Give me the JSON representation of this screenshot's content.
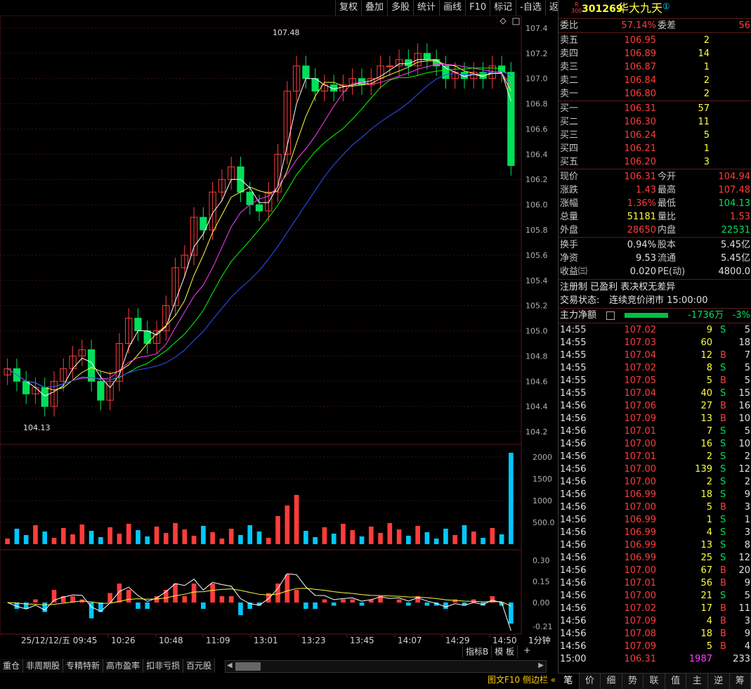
{
  "toolbar": [
    "复权",
    "叠加",
    "多股",
    "统计",
    "画线",
    "F10",
    "标记",
    "-自选",
    "返回"
  ],
  "stock": {
    "badge_top": "R",
    "badge_bottom": "300",
    "code": "301269",
    "name": "华大九天",
    "mark": "①"
  },
  "weibi": {
    "label": "委比",
    "value": "57.14%",
    "diff_label": "委差",
    "diff_value": "56"
  },
  "asks": [
    {
      "label": "卖五",
      "price": "106.95",
      "vol": "2"
    },
    {
      "label": "卖四",
      "price": "106.89",
      "vol": "14"
    },
    {
      "label": "卖三",
      "price": "106.87",
      "vol": "1"
    },
    {
      "label": "卖二",
      "price": "106.84",
      "vol": "2"
    },
    {
      "label": "卖一",
      "price": "106.80",
      "vol": "2"
    }
  ],
  "bids": [
    {
      "label": "买一",
      "price": "106.31",
      "vol": "57"
    },
    {
      "label": "买二",
      "price": "106.30",
      "vol": "11"
    },
    {
      "label": "买三",
      "price": "106.24",
      "vol": "5"
    },
    {
      "label": "买四",
      "price": "106.21",
      "vol": "1"
    },
    {
      "label": "买五",
      "price": "106.20",
      "vol": "3"
    }
  ],
  "quote": [
    {
      "l1": "现价",
      "v1": "106.31",
      "c1": "red",
      "l2": "今开",
      "v2": "104.94",
      "c2": "red"
    },
    {
      "l1": "涨跌",
      "v1": "1.43",
      "c1": "red",
      "l2": "最高",
      "v2": "107.48",
      "c2": "red"
    },
    {
      "l1": "涨幅",
      "v1": "1.36%",
      "c1": "red",
      "l2": "最低",
      "v2": "104.13",
      "c2": "green"
    },
    {
      "l1": "总量",
      "v1": "51181",
      "c1": "yellow",
      "l2": "量比",
      "v2": "1.53",
      "c2": "red"
    },
    {
      "l1": "外盘",
      "v1": "28650",
      "c1": "red",
      "l2": "内盘",
      "v2": "22531",
      "c2": "green"
    }
  ],
  "fund": [
    {
      "l1": "换手",
      "v1": "0.94%",
      "l2": "股本",
      "v2": "5.45亿"
    },
    {
      "l1": "净资",
      "v1": "9.53",
      "l2": "流通",
      "v2": "5.45亿"
    },
    {
      "l1": "收益㈢",
      "v1": "0.020",
      "l2": "PE(动)",
      "v2": "4800.0"
    }
  ],
  "tags_line": "注册制 已盈利 表决权无差异",
  "trade_status_label": "交易状态:",
  "trade_status": "连续竞价闭市 15:00:00",
  "main_force": {
    "label": "主力净额",
    "value": "-1736万",
    "pct": "-3%"
  },
  "trades": [
    [
      "14:55",
      "107.02",
      "9",
      "S",
      "5"
    ],
    [
      "14:55",
      "107.03",
      "60",
      "",
      "18"
    ],
    [
      "14:55",
      "107.04",
      "12",
      "B",
      "7"
    ],
    [
      "14:55",
      "107.02",
      "8",
      "S",
      "5"
    ],
    [
      "14:55",
      "107.05",
      "5",
      "B",
      "5"
    ],
    [
      "14:55",
      "107.04",
      "40",
      "S",
      "15"
    ],
    [
      "14:56",
      "107.06",
      "27",
      "B",
      "16"
    ],
    [
      "14:56",
      "107.09",
      "13",
      "B",
      "10"
    ],
    [
      "14:56",
      "107.01",
      "7",
      "S",
      "5"
    ],
    [
      "14:56",
      "107.00",
      "16",
      "S",
      "10"
    ],
    [
      "14:56",
      "107.01",
      "2",
      "S",
      "2"
    ],
    [
      "14:56",
      "107.00",
      "139",
      "S",
      "12"
    ],
    [
      "14:56",
      "107.00",
      "2",
      "S",
      "2"
    ],
    [
      "14:56",
      "106.99",
      "18",
      "S",
      "9"
    ],
    [
      "14:56",
      "107.00",
      "5",
      "B",
      "3"
    ],
    [
      "14:56",
      "106.99",
      "1",
      "S",
      "1"
    ],
    [
      "14:56",
      "106.99",
      "4",
      "S",
      "3"
    ],
    [
      "14:56",
      "106.99",
      "13",
      "S",
      "8"
    ],
    [
      "14:56",
      "106.99",
      "25",
      "S",
      "12"
    ],
    [
      "14:56",
      "107.00",
      "67",
      "B",
      "20"
    ],
    [
      "14:56",
      "107.01",
      "56",
      "B",
      "9"
    ],
    [
      "14:56",
      "107.00",
      "21",
      "S",
      "5"
    ],
    [
      "14:56",
      "107.02",
      "17",
      "B",
      "11"
    ],
    [
      "14:56",
      "107.09",
      "4",
      "B",
      "3"
    ],
    [
      "14:56",
      "107.08",
      "18",
      "B",
      "9"
    ],
    [
      "14:56",
      "107.09",
      "5",
      "B",
      "4"
    ],
    [
      "15:00",
      "106.31",
      "1987",
      "",
      "233"
    ]
  ],
  "panel_tabs": [
    "笔",
    "价",
    "细",
    "势",
    "联",
    "值",
    "主",
    "逆",
    "筹"
  ],
  "bottom_tabs": [
    "重仓",
    "非周期股",
    "专精特新",
    "高市盈率",
    "扣非亏损",
    "百元股"
  ],
  "bottom_right_text": "图文F10 侧边栏 «",
  "indicator_tabs": [
    "指标B",
    "模 板",
    "+"
  ],
  "period": "1分钟",
  "colors": {
    "up": "#ff3c3c",
    "down": "#00e05a",
    "vol": "#ffff3c",
    "ma5": "#ffffff",
    "ma10": "#ffff3c",
    "ma20": "#ff3cff",
    "ma30": "#00ff00",
    "ma60": "#3050ff"
  },
  "chart_data": {
    "type": "candlestick",
    "price_axis": {
      "ticks": [
        "107.4",
        "107.2",
        "107.0",
        "106.8",
        "106.6",
        "106.4",
        "106.2",
        "106.0",
        "105.8",
        "105.6",
        "105.4",
        "105.2",
        "105.0",
        "104.8",
        "104.6",
        "104.4",
        "104.2"
      ],
      "range": [
        104.1,
        107.5
      ]
    },
    "high_label": "107.48",
    "low_label": "104.13",
    "time_ticks": [
      "25/12/12/五 09:45",
      "10:26",
      "10:48",
      "11:09",
      "13:01",
      "13:23",
      "13:45",
      "14:07",
      "14:29",
      "14:50"
    ],
    "volume_ticks": [
      "2000",
      "1500",
      "1000",
      "500.0"
    ],
    "macd_ticks": [
      "0.30",
      "0.15",
      "0.00",
      "-0.21"
    ],
    "close_series": [
      104.7,
      104.6,
      104.5,
      104.55,
      104.4,
      104.6,
      104.7,
      104.8,
      104.85,
      104.6,
      104.45,
      104.6,
      104.9,
      105.1,
      105.0,
      104.9,
      105.0,
      105.2,
      105.5,
      105.6,
      105.9,
      105.8,
      106.1,
      106.2,
      106.3,
      106.1,
      106.0,
      105.95,
      106.1,
      106.4,
      106.9,
      107.1,
      107.0,
      106.9,
      106.95,
      106.9,
      106.95,
      107.0,
      106.95,
      107.0,
      107.1,
      107.1,
      107.15,
      107.1,
      107.2,
      107.15,
      107.1,
      107.0,
      107.05,
      107.0,
      107.05,
      107.0,
      107.1,
      107.05,
      106.31
    ]
  }
}
